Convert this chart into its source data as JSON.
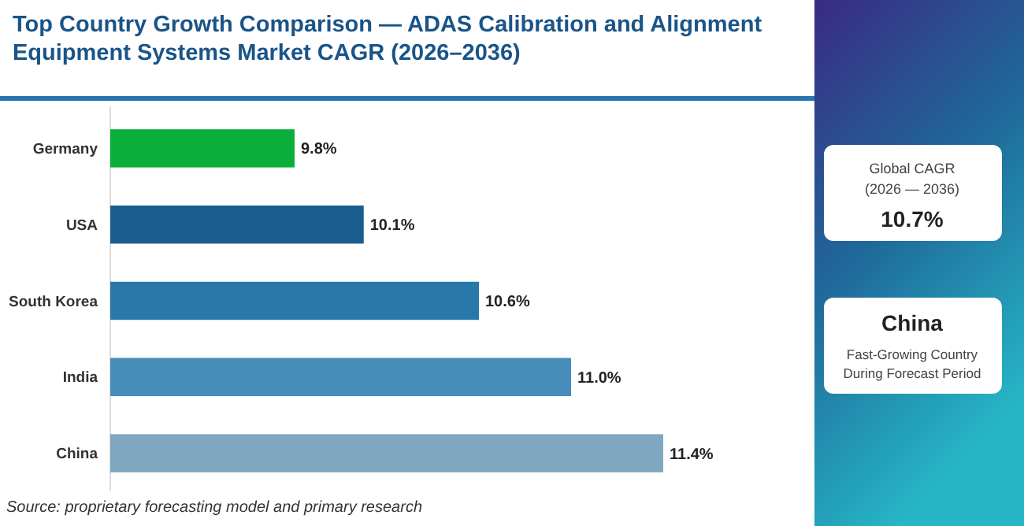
{
  "chart_data": {
    "type": "bar",
    "orientation": "horizontal",
    "title": "Top Country Growth Comparison — ADAS Calibration and Alignment Equipment Systems Market CAGR (2026–2036)",
    "categories": [
      "Germany",
      "USA",
      "South Korea",
      "India",
      "China"
    ],
    "values": [
      9.8,
      10.1,
      10.6,
      11.0,
      11.4
    ],
    "colors": [
      "#0aae3a",
      "#1b5d8f",
      "#2878aa",
      "#468dba",
      "#7fa7bf"
    ],
    "value_labels": [
      "9.8%",
      "10.1%",
      "10.6%",
      "11.0%",
      "11.4%"
    ],
    "xlim": [
      9,
      11.4
    ],
    "tick_labels": "y",
    "annotations": [
      "Source: proprietary forecasting model and primary research",
      "Global CAGR",
      "(2026 — 2036)",
      "10.7%",
      "China",
      "Fast-Growing Country",
      "During Forecast Period"
    ]
  }
}
